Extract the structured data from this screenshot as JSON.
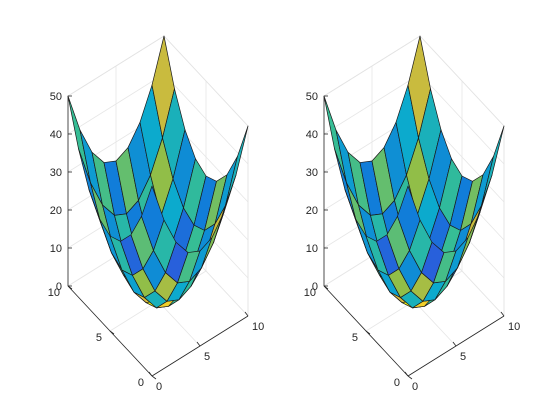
{
  "chart_data": [
    {
      "type": "surface",
      "title": "",
      "xlabel": "",
      "ylabel": "",
      "zlabel": "",
      "x_ticks": [
        0,
        5,
        10
      ],
      "y_ticks": [
        0,
        5,
        10
      ],
      "z_ticks": [
        0,
        10,
        20,
        30,
        40,
        50
      ],
      "xlim": [
        0,
        10
      ],
      "ylim": [
        0,
        10
      ],
      "zlim": [
        0,
        50
      ],
      "view": "3-D, origin corner at front-bottom",
      "colormap": "parula",
      "grid": true,
      "x": [
        0,
        1.25,
        2.5,
        3.75,
        5,
        6.25,
        7.5,
        8.75,
        10
      ],
      "y": [
        0,
        1.25,
        2.5,
        3.75,
        5,
        6.25,
        7.5,
        8.75,
        10
      ],
      "z_formula": "(x-5)^2 + (y-5)^2",
      "face_color_values": [
        [
          0.3,
          0.55,
          0.2,
          0.62,
          0.4,
          0.7,
          0.25,
          0.5
        ],
        [
          0.65,
          0.35,
          0.75,
          0.45,
          0.58,
          0.28,
          0.8,
          0.4
        ],
        [
          0.22,
          0.72,
          0.5,
          0.9,
          0.6,
          0.45,
          0.35,
          0.68
        ],
        [
          0.55,
          0.42,
          0.82,
          1.0,
          0.86,
          0.38,
          0.6,
          0.3
        ],
        [
          0.38,
          0.6,
          0.7,
          0.86,
          0.76,
          0.52,
          0.25,
          0.58
        ],
        [
          0.7,
          0.28,
          0.48,
          0.62,
          0.4,
          0.68,
          0.45,
          0.35
        ],
        [
          0.32,
          0.66,
          0.36,
          0.55,
          0.3,
          0.58,
          0.72,
          0.5
        ],
        [
          0.6,
          0.4,
          0.62,
          0.3,
          0.66,
          0.36,
          0.45,
          0.8
        ]
      ]
    },
    {
      "type": "surface",
      "title": "",
      "xlabel": "",
      "ylabel": "",
      "zlabel": "",
      "x_ticks": [
        0,
        5,
        10
      ],
      "y_ticks": [
        0,
        5,
        10
      ],
      "z_ticks": [
        0,
        10,
        20,
        30,
        40,
        50
      ],
      "xlim": [
        0,
        10
      ],
      "ylim": [
        0,
        10
      ],
      "zlim": [
        0,
        50
      ],
      "view": "3-D, origin corner at front-bottom",
      "colormap": "parula",
      "grid": true,
      "x": [
        0,
        1.25,
        2.5,
        3.75,
        5,
        6.25,
        7.5,
        8.75,
        10
      ],
      "y": [
        0,
        1.25,
        2.5,
        3.75,
        5,
        6.25,
        7.5,
        8.75,
        10
      ],
      "z_formula": "(x-5)^2 + (y-5)^2",
      "face_color_values": [
        [
          0.3,
          0.55,
          0.2,
          0.62,
          0.4,
          0.7,
          0.25,
          0.5
        ],
        [
          0.65,
          0.35,
          0.75,
          0.45,
          0.58,
          0.28,
          0.8,
          0.4
        ],
        [
          0.22,
          0.72,
          0.5,
          0.9,
          0.6,
          0.45,
          0.35,
          0.68
        ],
        [
          0.55,
          0.42,
          0.82,
          1.0,
          0.86,
          0.38,
          0.6,
          0.3
        ],
        [
          0.38,
          0.6,
          0.7,
          0.86,
          0.76,
          0.52,
          0.25,
          0.58
        ],
        [
          0.7,
          0.28,
          0.48,
          0.62,
          0.4,
          0.68,
          0.45,
          0.35
        ],
        [
          0.32,
          0.66,
          0.36,
          0.55,
          0.3,
          0.58,
          0.72,
          0.5
        ],
        [
          0.6,
          0.4,
          0.62,
          0.3,
          0.66,
          0.36,
          0.45,
          0.8
        ]
      ]
    }
  ],
  "colors": {
    "background": "#ffffff",
    "axis": "#262626",
    "grid": "#e6e6e6",
    "edge": "#1a1a1a"
  }
}
